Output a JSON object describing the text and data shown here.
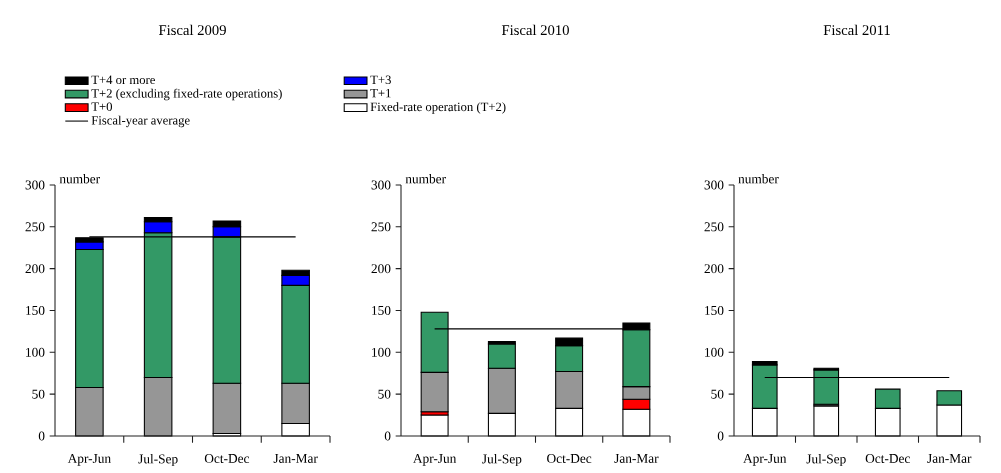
{
  "chart_data": [
    {
      "type": "bar",
      "title": "Fiscal 2009",
      "ylabel": "number",
      "stacked": true,
      "legend": "top",
      "categories": [
        "Apr-Jun",
        "Jul-Sep",
        "Oct-Dec",
        "Jan-Mar"
      ],
      "ylim": [
        0,
        300
      ],
      "yticks": [
        0,
        50,
        100,
        150,
        200,
        250,
        300
      ],
      "series": [
        {
          "name": "Fixed-rate operation (T+2)",
          "color": "#ffffff",
          "values": [
            null,
            null,
            3,
            15
          ]
        },
        {
          "name": "T+0",
          "color": "#ff0000",
          "values": [
            null,
            null,
            null,
            null
          ]
        },
        {
          "name": "T+1",
          "color": "#969696",
          "values": [
            58,
            70,
            60,
            48
          ]
        },
        {
          "name": "T+2 (excluding fixed-rate operations)",
          "color": "#339966",
          "values": [
            165,
            173,
            175,
            117
          ]
        },
        {
          "name": "T+3",
          "color": "#0000ff",
          "values": [
            9,
            13,
            12,
            12
          ]
        },
        {
          "name": "T+4 or more",
          "color": "#000000",
          "values": [
            5,
            5,
            7,
            6
          ]
        },
        {
          "name": "Fiscal-year average",
          "type": "line",
          "color": "#000000",
          "values": [
            238,
            238,
            238,
            238
          ]
        }
      ]
    },
    {
      "type": "bar",
      "title": "Fiscal 2010",
      "ylabel": "number",
      "stacked": true,
      "categories": [
        "Apr-Jun",
        "Jul-Sep",
        "Oct-Dec",
        "Jan-Mar"
      ],
      "ylim": [
        0,
        300
      ],
      "yticks": [
        0,
        50,
        100,
        150,
        200,
        250,
        300
      ],
      "series": [
        {
          "color": "#ffffff",
          "values": [
            25,
            27,
            33,
            32
          ]
        },
        {
          "color": "#ff0000",
          "values": [
            4,
            null,
            null,
            12
          ]
        },
        {
          "color": "#969696",
          "values": [
            47,
            54,
            44,
            15
          ]
        },
        {
          "color": "#339966",
          "values": [
            72,
            29,
            31,
            68
          ]
        },
        {
          "color": "#000000",
          "values": [
            null,
            3,
            9,
            8
          ]
        },
        {
          "type": "line",
          "color": "#000000",
          "values": [
            128,
            128,
            128,
            128
          ]
        }
      ]
    },
    {
      "type": "bar",
      "title": "Fiscal 2011",
      "ylabel": "number",
      "stacked": true,
      "categories": [
        "Apr-Jun",
        "Jul-Sep",
        "Oct-Dec",
        "Jan-Mar"
      ],
      "ylim": [
        0,
        300
      ],
      "yticks": [
        0,
        50,
        100,
        150,
        200,
        250,
        300
      ],
      "series": [
        {
          "color": "#ffffff",
          "values": [
            33,
            36,
            33,
            37
          ]
        },
        {
          "color": "#969696",
          "values": [
            null,
            2,
            null,
            null
          ]
        },
        {
          "color": "#339966",
          "values": [
            52,
            41,
            23,
            17
          ]
        },
        {
          "color": "#000000",
          "values": [
            4,
            2,
            null,
            null
          ]
        },
        {
          "type": "line",
          "color": "#000000",
          "values": [
            70,
            70,
            70,
            70
          ]
        }
      ]
    }
  ]
}
